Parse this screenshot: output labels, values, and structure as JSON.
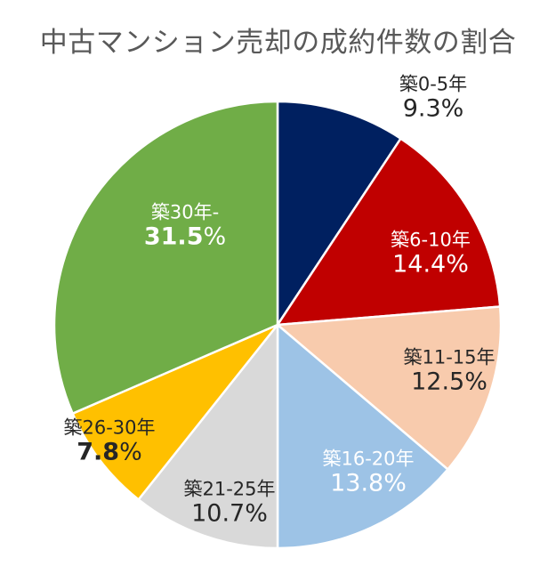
{
  "chart_data": {
    "type": "pie",
    "title": "中古マンション売却の成約件数の割合",
    "categories": [
      "築0-5年",
      "築6-10年",
      "築11-15年",
      "築16-20年",
      "築21-25年",
      "築26-30年",
      "築30年-"
    ],
    "values": [
      9.3,
      14.4,
      12.5,
      13.8,
      10.7,
      7.8,
      31.5
    ],
    "labels": [
      "9.3%",
      "14.4%",
      "12.5%",
      "13.8%",
      "10.7%",
      "7.8%",
      "31.5%"
    ],
    "colors": [
      "#002060",
      "#C00000",
      "#F8CBAD",
      "#9DC3E6",
      "#D9D9D9",
      "#FFC000",
      "#70AD47"
    ],
    "label_colors": [
      "#262626",
      "#ffffff",
      "#262626",
      "#ffffff",
      "#262626",
      "#262626",
      "#ffffff"
    ],
    "start_angle_deg": 0,
    "direction": "clockwise",
    "legend": "none",
    "xlabel": "",
    "ylabel": ""
  },
  "title": "中古マンション売却の成約件数の割合"
}
